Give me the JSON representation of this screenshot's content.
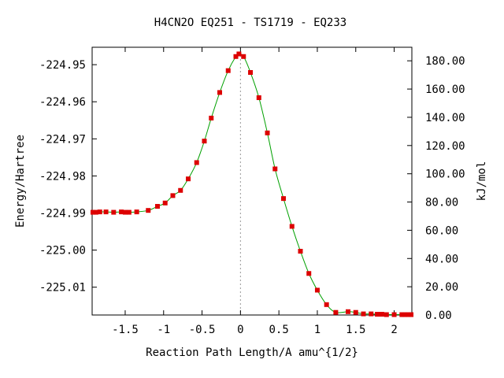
{
  "chart_data": {
    "type": "line",
    "title": "H4CN2O   EQ251 - TS1719 - EQ233",
    "xlabel": "Reaction Path Length/A amu^{1/2}",
    "ylabel_left": "Energy/Hartree",
    "ylabel_right": "kJ/mol",
    "xlim": [
      -1.93,
      2.23
    ],
    "ylim_left": [
      -225.0175,
      -224.9453
    ],
    "ylim_right": [
      0,
      189.6
    ],
    "x_ticks": [
      {
        "value": -1.5,
        "label": "-1.5"
      },
      {
        "value": -1,
        "label": "-1"
      },
      {
        "value": -0.5,
        "label": "-0.5"
      },
      {
        "value": 0,
        "label": "0"
      },
      {
        "value": 0.5,
        "label": "0.5"
      },
      {
        "value": 1,
        "label": "1"
      },
      {
        "value": 1.5,
        "label": "1.5"
      },
      {
        "value": 2,
        "label": "2"
      }
    ],
    "y_ticks_left": [
      {
        "value": -224.95,
        "label": "-224.95"
      },
      {
        "value": -224.96,
        "label": "-224.96"
      },
      {
        "value": -224.97,
        "label": "-224.97"
      },
      {
        "value": -224.98,
        "label": "-224.98"
      },
      {
        "value": -224.99,
        "label": "-224.99"
      },
      {
        "value": -225.0,
        "label": "-225.00"
      },
      {
        "value": -225.01,
        "label": "-225.01"
      }
    ],
    "y_ticks_right": [
      {
        "value": 0,
        "label": "0.00"
      },
      {
        "value": 20,
        "label": "20.00"
      },
      {
        "value": 40,
        "label": "40.00"
      },
      {
        "value": 60,
        "label": "60.00"
      },
      {
        "value": 80,
        "label": "80.00"
      },
      {
        "value": 100,
        "label": "100.00"
      },
      {
        "value": 120,
        "label": "120.00"
      },
      {
        "value": 140,
        "label": "140.00"
      },
      {
        "value": 160,
        "label": "160.00"
      },
      {
        "value": 180,
        "label": "180.00"
      }
    ],
    "ts_x": 0,
    "line_color": "#00a000",
    "marker_color": "#dd0000",
    "guide_color": "#999999",
    "series": [
      {
        "x": [
          -1.92,
          -1.88,
          -1.83,
          -1.75,
          -1.65,
          -1.55,
          -1.5,
          -1.45,
          -1.35,
          -1.2,
          -1.08,
          -0.98,
          -0.88,
          -0.78,
          -0.68,
          -0.57,
          -0.47,
          -0.38,
          -0.27,
          -0.16,
          -0.06,
          -0.02,
          0.04,
          0.13,
          0.24,
          0.35,
          0.45,
          0.56,
          0.67,
          0.78,
          0.89,
          1.0,
          1.12,
          1.24,
          1.4,
          1.5,
          1.6,
          1.7,
          1.78,
          1.84,
          1.9,
          2.0,
          2.1,
          2.14,
          2.18,
          2.22
        ],
        "y": [
          -224.9898,
          -224.9898,
          -224.9897,
          -224.9897,
          -224.9898,
          -224.9897,
          -224.9898,
          -224.9898,
          -224.9897,
          -224.9893,
          -224.9882,
          -224.9873,
          -224.9853,
          -224.9839,
          -224.9808,
          -224.9764,
          -224.9706,
          -224.9644,
          -224.9575,
          -224.9516,
          -224.9478,
          -224.9471,
          -224.9478,
          -224.9521,
          -224.9589,
          -224.9684,
          -224.9781,
          -224.9861,
          -224.9936,
          -225.0003,
          -225.0063,
          -225.0108,
          -225.0147,
          -225.0168,
          -225.0166,
          -225.0168,
          -225.0172,
          -225.0172,
          -225.0173,
          -225.0173,
          -225.0174,
          -225.0174,
          -225.0174,
          -225.0174,
          -225.0174,
          -225.0174
        ]
      }
    ]
  }
}
